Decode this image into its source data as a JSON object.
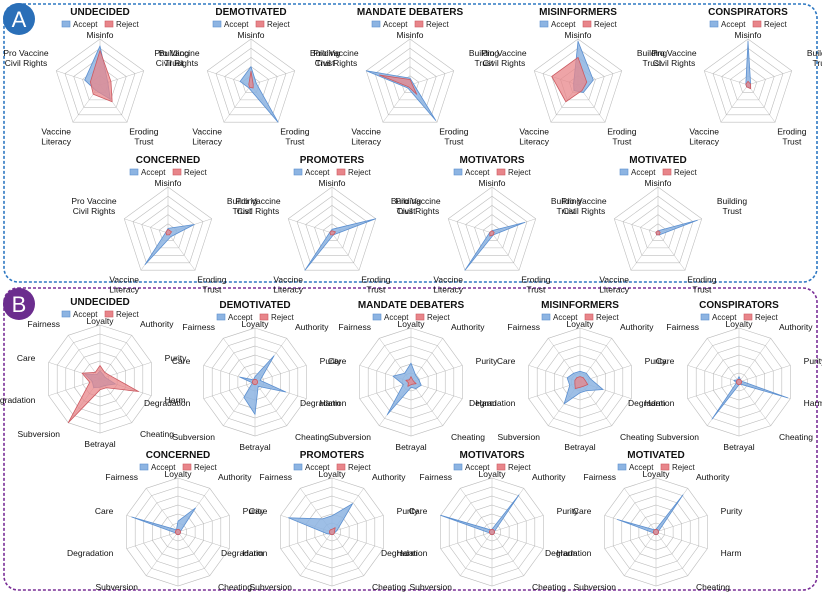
{
  "colors": {
    "panel_a_border": "#2e78c2",
    "panel_b_border": "#7a2f97",
    "badge_a": "#2a6fb8",
    "badge_b": "#6b2d8e",
    "accept_fill": "#8db4e2",
    "accept_stroke": "#5b8fd0",
    "reject_fill": "#e8858a",
    "reject_stroke": "#cc5a61",
    "grid": "#bdbdbd"
  },
  "panels": [
    {
      "label": "A",
      "axes": [
        "Misinfo",
        "Building Trust",
        "Eroding Trust",
        "Vaccine Literacy",
        "Pro Vaccine Civil Rights"
      ],
      "legend": {
        "accept": "Accept",
        "reject": "Reject"
      }
    },
    {
      "label": "B",
      "axes": [
        "Loyalty",
        "Authority",
        "Purity",
        "Harm",
        "Cheating",
        "Betrayal",
        "Subversion",
        "Degradation",
        "Care",
        "Fairness"
      ],
      "legend": {
        "accept": "Accept",
        "reject": "Reject"
      }
    }
  ],
  "chart_data": [
    {
      "type": "radar",
      "panel": "A",
      "title": "UNDECIDED",
      "range": [
        0,
        1
      ],
      "series": [
        {
          "name": "Accept",
          "values": [
            0.85,
            0.18,
            0.38,
            0.15,
            0.35
          ]
        },
        {
          "name": "Reject",
          "values": [
            0.75,
            0.25,
            0.45,
            0.25,
            0.22
          ]
        }
      ]
    },
    {
      "type": "radar",
      "panel": "A",
      "title": "DEMOTIVATED",
      "range": [
        0,
        1
      ],
      "series": [
        {
          "name": "Accept",
          "values": [
            0.4,
            0.12,
            1.0,
            0.08,
            0.25
          ]
        },
        {
          "name": "Reject",
          "values": [
            0.3,
            0.05,
            0.08,
            0.06,
            0.05
          ]
        }
      ]
    },
    {
      "type": "radar",
      "panel": "A",
      "title": "MANDATE DEBATERS",
      "range": [
        0,
        1
      ],
      "series": [
        {
          "name": "Accept",
          "values": [
            0.15,
            0.08,
            0.95,
            0.08,
            1.0
          ]
        },
        {
          "name": "Reject",
          "values": [
            0.12,
            0.05,
            0.25,
            0.05,
            0.7
          ]
        }
      ]
    },
    {
      "type": "radar",
      "panel": "A",
      "title": "MISINFORMERS",
      "range": [
        0,
        1
      ],
      "series": [
        {
          "name": "Accept",
          "values": [
            0.95,
            0.35,
            0.2,
            0.15,
            0.1
          ]
        },
        {
          "name": "Reject",
          "values": [
            0.6,
            0.2,
            0.15,
            0.45,
            0.6
          ]
        }
      ]
    },
    {
      "type": "radar",
      "panel": "A",
      "title": "CONSPIRATORS",
      "range": [
        0,
        1
      ],
      "series": [
        {
          "name": "Accept",
          "values": [
            0.95,
            0.06,
            0.08,
            0.05,
            0.05
          ]
        },
        {
          "name": "Reject",
          "values": [
            0.08,
            0.06,
            0.1,
            0.05,
            0.05
          ]
        }
      ]
    },
    {
      "type": "radar",
      "panel": "A",
      "title": "CONCERNED",
      "range": [
        0,
        1
      ],
      "series": [
        {
          "name": "Accept",
          "values": [
            0.1,
            0.6,
            0.1,
            0.85,
            0.05
          ]
        },
        {
          "name": "Reject",
          "values": [
            0.08,
            0.08,
            0.05,
            0.05,
            0.05
          ]
        }
      ]
    },
    {
      "type": "radar",
      "panel": "A",
      "title": "PROMOTERS",
      "range": [
        0,
        1
      ],
      "series": [
        {
          "name": "Accept",
          "values": [
            0.08,
            1.0,
            0.05,
            1.0,
            0.05
          ]
        },
        {
          "name": "Reject",
          "values": [
            0.05,
            0.08,
            0.05,
            0.05,
            0.05
          ]
        }
      ]
    },
    {
      "type": "radar",
      "panel": "A",
      "title": "MOTIVATORS",
      "range": [
        0,
        1
      ],
      "series": [
        {
          "name": "Accept",
          "values": [
            0.05,
            0.75,
            0.05,
            1.0,
            0.05
          ]
        },
        {
          "name": "Reject",
          "values": [
            0.05,
            0.05,
            0.05,
            0.08,
            0.05
          ]
        }
      ]
    },
    {
      "type": "radar",
      "panel": "A",
      "title": "MOTIVATED",
      "range": [
        0,
        1
      ],
      "series": [
        {
          "name": "Accept",
          "values": [
            0.05,
            0.9,
            0.05,
            0.05,
            0.05
          ]
        },
        {
          "name": "Reject",
          "values": [
            0.05,
            0.05,
            0.05,
            0.05,
            0.05
          ]
        }
      ]
    },
    {
      "type": "radar",
      "panel": "B",
      "title": "UNDECIDED",
      "range": [
        0,
        1
      ],
      "series": [
        {
          "name": "Accept",
          "values": [
            0.15,
            0.1,
            0.1,
            0.3,
            0.15,
            0.15,
            0.2,
            0.15,
            0.3,
            0.1
          ]
        },
        {
          "name": "Reject",
          "values": [
            0.25,
            0.15,
            0.2,
            0.75,
            0.2,
            0.2,
            1.0,
            0.2,
            0.35,
            0.15
          ]
        }
      ]
    },
    {
      "type": "radar",
      "panel": "B",
      "title": "DEMOTIVATED",
      "range": [
        0,
        1
      ],
      "series": [
        {
          "name": "Accept",
          "values": [
            0.1,
            0.6,
            0.1,
            0.6,
            0.1,
            0.6,
            0.35,
            0.05,
            0.3,
            0.05
          ]
        },
        {
          "name": "Reject",
          "values": [
            0.05,
            0.05,
            0.05,
            0.05,
            0.05,
            0.05,
            0.05,
            0.05,
            0.05,
            0.05
          ]
        }
      ]
    },
    {
      "type": "radar",
      "panel": "B",
      "title": "MANDATE DEBATERS",
      "range": [
        0,
        1
      ],
      "series": [
        {
          "name": "Accept",
          "values": [
            0.35,
            0.15,
            0.15,
            0.2,
            0.15,
            0.1,
            0.75,
            0.15,
            0.35,
            0.2
          ]
        },
        {
          "name": "Reject",
          "values": [
            0.1,
            0.05,
            0.05,
            0.1,
            0.05,
            0.05,
            0.1,
            0.05,
            0.1,
            0.05
          ]
        }
      ]
    },
    {
      "type": "radar",
      "panel": "B",
      "title": "MISINFORMERS",
      "range": [
        0,
        1
      ],
      "series": [
        {
          "name": "Accept",
          "values": [
            0.2,
            0.2,
            0.2,
            0.45,
            0.2,
            0.2,
            0.5,
            0.2,
            0.25,
            0.2
          ]
        },
        {
          "name": "Reject",
          "values": [
            0.1,
            0.1,
            0.1,
            0.15,
            0.1,
            0.1,
            0.15,
            0.1,
            0.1,
            0.1
          ]
        }
      ]
    },
    {
      "type": "radar",
      "panel": "B",
      "title": "CONSPIRATORS",
      "range": [
        0,
        1
      ],
      "series": [
        {
          "name": "Accept",
          "values": [
            0.1,
            0.05,
            0.05,
            0.95,
            0.05,
            0.05,
            0.85,
            0.05,
            0.1,
            0.05
          ]
        },
        {
          "name": "Reject",
          "values": [
            0.05,
            0.05,
            0.05,
            0.05,
            0.05,
            0.05,
            0.05,
            0.05,
            0.05,
            0.05
          ]
        }
      ]
    },
    {
      "type": "radar",
      "panel": "B",
      "title": "CONCERNED",
      "range": [
        0,
        1
      ],
      "series": [
        {
          "name": "Accept",
          "values": [
            0.2,
            0.55,
            0.05,
            0.05,
            0.05,
            0.05,
            0.05,
            0.05,
            0.9,
            0.05
          ]
        },
        {
          "name": "Reject",
          "values": [
            0.05,
            0.05,
            0.05,
            0.05,
            0.05,
            0.05,
            0.05,
            0.05,
            0.05,
            0.05
          ]
        }
      ]
    },
    {
      "type": "radar",
      "panel": "B",
      "title": "PROMOTERS",
      "range": [
        0,
        1
      ],
      "series": [
        {
          "name": "Accept",
          "values": [
            0.3,
            0.65,
            0.1,
            0.05,
            0.05,
            0.05,
            0.05,
            0.1,
            0.85,
            0.3
          ]
        },
        {
          "name": "Reject",
          "values": [
            0.05,
            0.1,
            0.05,
            0.05,
            0.05,
            0.05,
            0.05,
            0.05,
            0.05,
            0.05
          ]
        }
      ]
    },
    {
      "type": "radar",
      "panel": "B",
      "title": "MOTIVATORS",
      "range": [
        0,
        1
      ],
      "series": [
        {
          "name": "Accept",
          "values": [
            0.05,
            0.85,
            0.05,
            0.05,
            0.05,
            0.05,
            0.05,
            0.05,
            1.0,
            0.05
          ]
        },
        {
          "name": "Reject",
          "values": [
            0.05,
            0.05,
            0.05,
            0.05,
            0.05,
            0.05,
            0.05,
            0.05,
            0.05,
            0.05
          ]
        }
      ]
    },
    {
      "type": "radar",
      "panel": "B",
      "title": "MOTIVATED",
      "range": [
        0,
        1
      ],
      "series": [
        {
          "name": "Accept",
          "values": [
            0.05,
            0.85,
            0.05,
            0.05,
            0.05,
            0.05,
            0.05,
            0.05,
            0.75,
            0.05
          ]
        },
        {
          "name": "Reject",
          "values": [
            0.05,
            0.05,
            0.05,
            0.05,
            0.05,
            0.05,
            0.05,
            0.05,
            0.05,
            0.05
          ]
        }
      ]
    }
  ]
}
